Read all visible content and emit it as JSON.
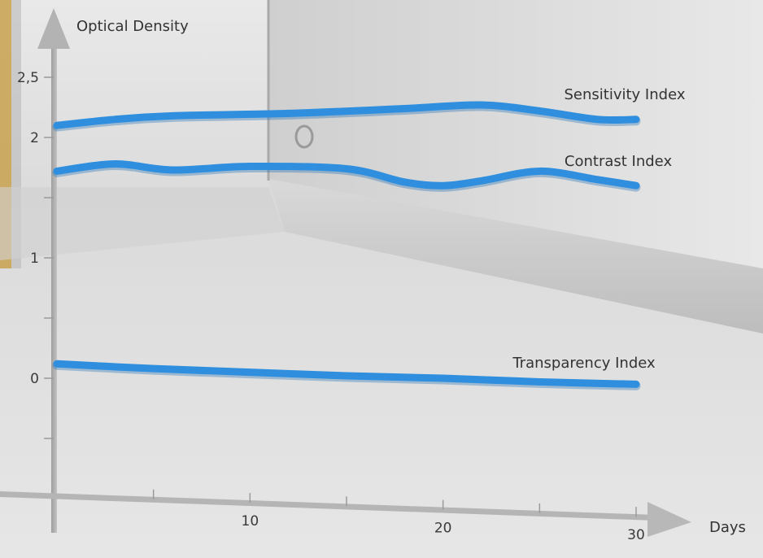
{
  "chart_data": {
    "type": "line",
    "title": "",
    "xlabel": "Days",
    "ylabel": "Optical Density",
    "xlim": [
      0,
      30
    ],
    "ylim": [
      -0.5,
      2.5
    ],
    "x_ticks": [
      {
        "value": 5,
        "label": ""
      },
      {
        "value": 10,
        "label": "10"
      },
      {
        "value": 15,
        "label": ""
      },
      {
        "value": 20,
        "label": "20"
      },
      {
        "value": 25,
        "label": ""
      },
      {
        "value": 30,
        "label": "30"
      }
    ],
    "y_ticks": [
      {
        "value": -0.5,
        "label": ""
      },
      {
        "value": 0,
        "label": "0"
      },
      {
        "value": 0.5,
        "label": ""
      },
      {
        "value": 1,
        "label": "1"
      },
      {
        "value": 1.5,
        "label": ""
      },
      {
        "value": 2,
        "label": "2"
      },
      {
        "value": 2.5,
        "label": "2,5"
      }
    ],
    "grid": false,
    "series": [
      {
        "name": "Sensitivity Index",
        "color": "#2f8fde",
        "x": [
          0,
          3,
          6,
          12,
          18,
          22,
          25,
          28,
          30
        ],
        "y": [
          2.1,
          2.15,
          2.18,
          2.2,
          2.24,
          2.27,
          2.22,
          2.15,
          2.15
        ]
      },
      {
        "name": "Contrast Index",
        "color": "#2f8fde",
        "x": [
          0,
          3,
          6,
          10,
          15,
          18,
          20,
          22,
          25,
          28,
          30
        ],
        "y": [
          1.72,
          1.78,
          1.73,
          1.76,
          1.74,
          1.63,
          1.6,
          1.64,
          1.72,
          1.65,
          1.6
        ]
      },
      {
        "name": "Transparency Index",
        "color": "#2f8fde",
        "x": [
          0,
          5,
          10,
          15,
          20,
          25,
          30
        ],
        "y": [
          0.12,
          0.08,
          0.05,
          0.02,
          0.0,
          -0.03,
          -0.05
        ]
      }
    ]
  }
}
